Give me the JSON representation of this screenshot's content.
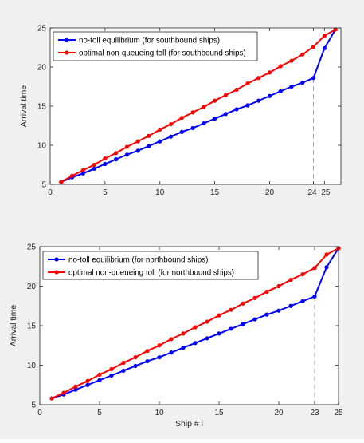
{
  "chart_data": [
    {
      "type": "line",
      "ylabel": "Arrival time",
      "xlabel": "",
      "xlim": [
        0,
        26.5
      ],
      "ylim": [
        5,
        25
      ],
      "xticks": [
        0,
        5,
        10,
        15,
        20,
        24,
        25
      ],
      "yticks": [
        5,
        10,
        15,
        20,
        25
      ],
      "grid": false,
      "legend": "top-left",
      "guide_x": 24,
      "series": [
        {
          "name": "no-toll equilibrium (for southbound ships)",
          "color": "#0000ff",
          "x": [
            1,
            2,
            3,
            4,
            5,
            6,
            7,
            8,
            9,
            10,
            11,
            12,
            13,
            14,
            15,
            16,
            17,
            18,
            19,
            20,
            21,
            22,
            23,
            24,
            25,
            26
          ],
          "values": [
            5.3,
            5.9,
            6.4,
            7.0,
            7.6,
            8.2,
            8.8,
            9.3,
            9.9,
            10.5,
            11.1,
            11.7,
            12.2,
            12.8,
            13.4,
            14.0,
            14.6,
            15.1,
            15.7,
            16.3,
            16.9,
            17.5,
            18.0,
            18.6,
            22.4,
            24.8
          ]
        },
        {
          "name": "optimal non-queueing toll (for southbound ships)",
          "color": "#ff0000",
          "x": [
            1,
            2,
            3,
            4,
            5,
            6,
            7,
            8,
            9,
            10,
            11,
            12,
            13,
            14,
            15,
            16,
            17,
            18,
            19,
            20,
            21,
            22,
            23,
            24,
            25,
            26
          ],
          "values": [
            5.3,
            6.1,
            6.8,
            7.5,
            8.3,
            9.0,
            9.8,
            10.5,
            11.2,
            12.0,
            12.7,
            13.5,
            14.2,
            14.9,
            15.7,
            16.4,
            17.1,
            17.9,
            18.6,
            19.3,
            20.1,
            20.8,
            21.6,
            22.6,
            24.0,
            24.8
          ]
        }
      ]
    },
    {
      "type": "line",
      "ylabel": "Arrival time",
      "xlabel": "Ship # i",
      "xlim": [
        0,
        25
      ],
      "ylim": [
        5,
        25
      ],
      "xticks": [
        0,
        5,
        10,
        15,
        20,
        23,
        25
      ],
      "yticks": [
        5,
        10,
        15,
        20,
        25
      ],
      "grid": false,
      "legend": "top-left",
      "guide_x": 23,
      "series": [
        {
          "name": "no-toll equilibrium (for northbound ships)",
          "color": "#0000ff",
          "x": [
            1,
            2,
            3,
            4,
            5,
            6,
            7,
            8,
            9,
            10,
            11,
            12,
            13,
            14,
            15,
            16,
            17,
            18,
            19,
            20,
            21,
            22,
            23,
            24,
            25
          ],
          "values": [
            5.8,
            6.3,
            6.9,
            7.5,
            8.1,
            8.7,
            9.3,
            9.9,
            10.5,
            11.0,
            11.6,
            12.2,
            12.8,
            13.4,
            14.0,
            14.6,
            15.2,
            15.8,
            16.4,
            16.9,
            17.5,
            18.1,
            18.7,
            22.4,
            24.8
          ]
        },
        {
          "name": "optimal non-queueing toll (for northbound ships)",
          "color": "#ff0000",
          "x": [
            1,
            2,
            3,
            4,
            5,
            6,
            7,
            8,
            9,
            10,
            11,
            12,
            13,
            14,
            15,
            16,
            17,
            18,
            19,
            20,
            21,
            22,
            23,
            24,
            25
          ],
          "values": [
            5.8,
            6.5,
            7.3,
            8.0,
            8.8,
            9.5,
            10.3,
            11.0,
            11.8,
            12.5,
            13.3,
            14.0,
            14.8,
            15.5,
            16.3,
            17.0,
            17.8,
            18.5,
            19.3,
            20.0,
            20.8,
            21.5,
            22.3,
            24.0,
            24.8
          ]
        }
      ]
    }
  ]
}
